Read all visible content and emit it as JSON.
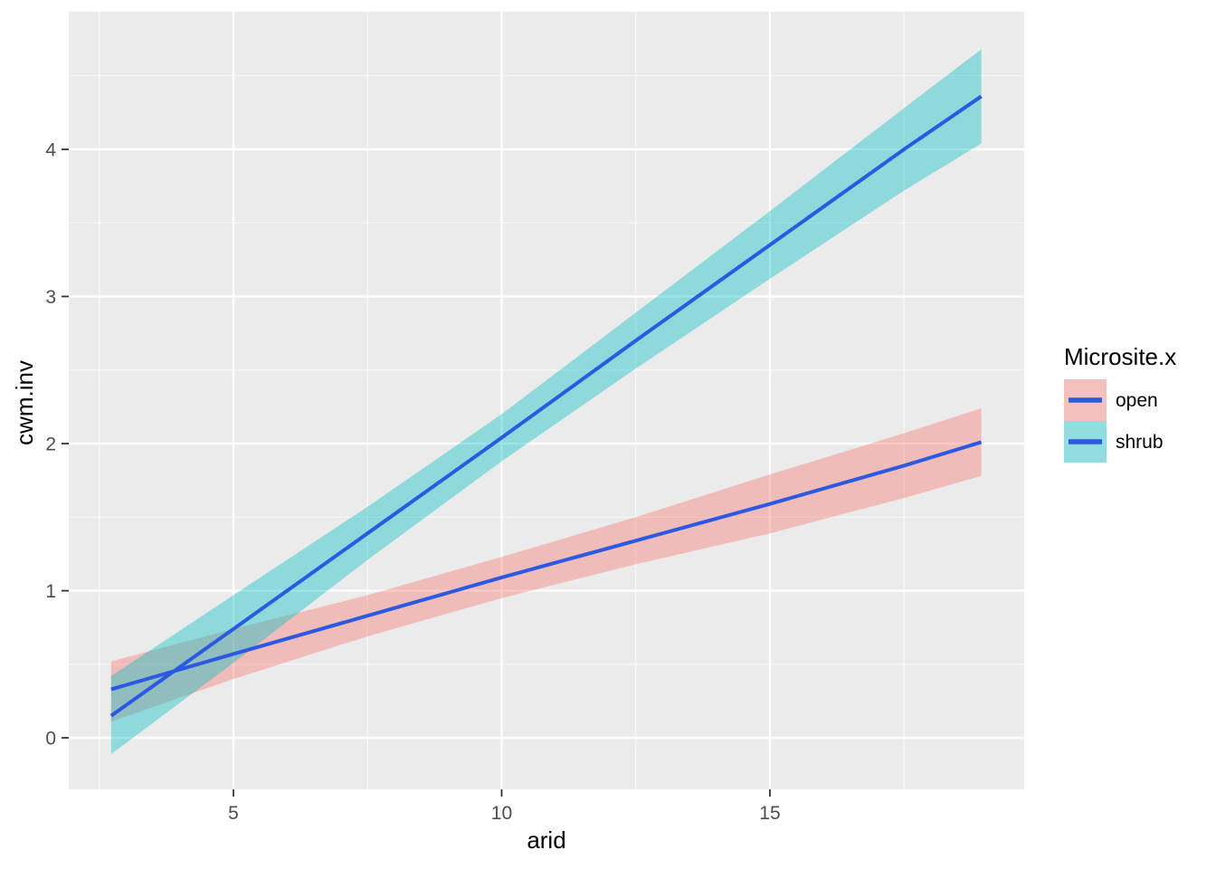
{
  "chart_data": {
    "type": "line",
    "title": "",
    "xlabel": "arid",
    "ylabel": "cwm.inv",
    "legend_title": "Microsite.x",
    "legend_position": "right",
    "grid": true,
    "panel_background": "#EBEBEB",
    "grid_color": "#FFFFFF",
    "tick_label_color": "#4D4D4D",
    "tick_mark_color": "#333333",
    "legend_key_background": "#F2F2F2",
    "xlim": [
      1.93,
      19.74
    ],
    "ylim": [
      -0.35,
      4.935
    ],
    "x_ticks": [
      5,
      10,
      15
    ],
    "y_ticks": [
      0,
      1,
      2,
      3,
      4
    ],
    "x_minor_ticks": [
      2.5,
      7.5,
      12.5,
      17.5
    ],
    "y_minor_ticks": [
      0.5,
      1.5,
      2.5,
      3.5,
      4.5
    ],
    "line_color": "#2B59E3",
    "ribbon_opacity": 0.4,
    "series": [
      {
        "name": "open",
        "ribbon_color": "#F8766D",
        "x": [
          2.72,
          5.0,
          7.5,
          10.0,
          12.5,
          15.0,
          17.5,
          18.94
        ],
        "y": [
          0.33,
          0.57,
          0.83,
          1.09,
          1.34,
          1.59,
          1.85,
          2.01
        ],
        "ymin": [
          0.11,
          0.4,
          0.69,
          0.95,
          1.18,
          1.39,
          1.63,
          1.78
        ],
        "ymax": [
          0.52,
          0.74,
          0.97,
          1.23,
          1.5,
          1.79,
          2.07,
          2.24
        ]
      },
      {
        "name": "shrub",
        "ribbon_color": "#00BFC4",
        "x": [
          2.72,
          5.0,
          7.5,
          10.0,
          12.5,
          15.0,
          17.5,
          18.94
        ],
        "y": [
          0.15,
          0.74,
          1.39,
          2.04,
          2.7,
          3.35,
          4.0,
          4.36
        ],
        "ymin": [
          -0.11,
          0.51,
          1.21,
          1.88,
          2.51,
          3.12,
          3.72,
          4.04
        ],
        "ymax": [
          0.42,
          0.97,
          1.57,
          2.2,
          2.89,
          3.58,
          4.28,
          4.68
        ]
      }
    ],
    "legend_entries": [
      "open",
      "shrub"
    ]
  }
}
